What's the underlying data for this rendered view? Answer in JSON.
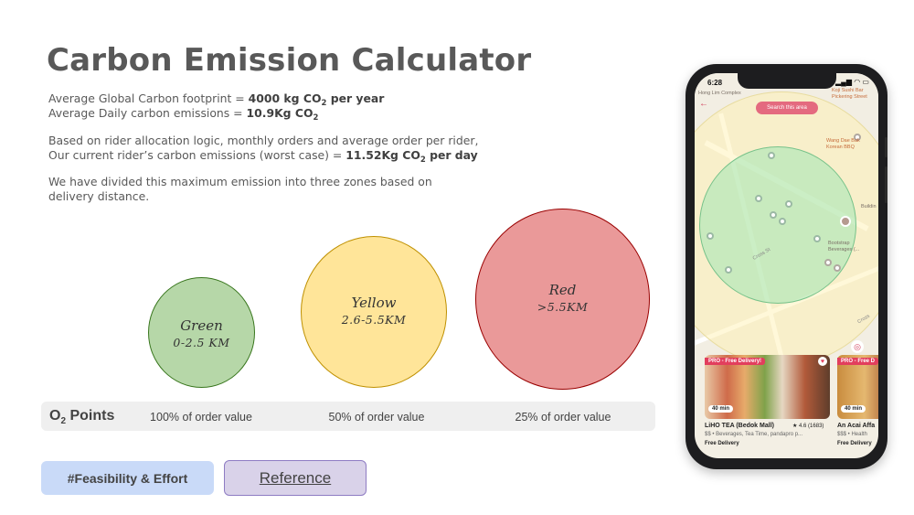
{
  "title": "Carbon Emission Calculator",
  "intro": {
    "line1_prefix": "Average Global Carbon footprint = ",
    "line1_value": "4000 kg CO",
    "line1_sub": "2",
    "line1_suffix": " per year",
    "line2_prefix": "Average Daily carbon emissions = ",
    "line2_value": "10.9Kg CO",
    "line2_sub": "2"
  },
  "rider": {
    "text": "Based on rider allocation logic, monthly orders and average order per rider, Our current rider’s carbon emissions (worst case) = ",
    "value": "11.52Kg CO",
    "sub": "2",
    "suffix": " per day"
  },
  "zones_note": "We have divided this maximum emission into three zones based on delivery distance.",
  "zones": [
    {
      "name": "Green",
      "range": "0-2.5 KM",
      "color": "#b6d7a8"
    },
    {
      "name": "Yellow",
      "range": "2.6-5.5KM",
      "color": "#ffe599"
    },
    {
      "name": "Red",
      "range": ">5.5KM",
      "color": "#ea9999"
    }
  ],
  "points": {
    "label_prefix": "O",
    "label_sub": "2",
    "label_suffix": " Points",
    "values": [
      "100% of order value",
      "50% of order value",
      "25% of order value"
    ]
  },
  "buttons": {
    "feasibility": "#Feasibility & Effort",
    "reference": "Reference"
  },
  "phone": {
    "time": "6:28",
    "status_icons": "▂▄▆ ◠ ▭",
    "search_area": "Search this area",
    "map_labels": {
      "hong_lim": "Hong Lim Complex",
      "koji": "Koji Sushi Bar Pickering Street",
      "wang_dae": "Wang Dae Bak Korean BBQ",
      "bootstrap": "Bootstrap Beverages (...",
      "cross_st": "Cross St",
      "cross_right": "Cross",
      "building": "Buildin"
    },
    "cards": [
      {
        "badge": "PRO - Free Delivery!",
        "eta": "40 min",
        "name": "LiHO TEA (Bedok Mall)",
        "rating": "★ 4.6 (1683)",
        "meta": "$$ • Beverages, Tea Time, pandapro p...",
        "free": "Free Delivery"
      },
      {
        "badge": "PRO - Free D",
        "eta": "40 min",
        "name": "An Acai Affa",
        "meta": "$$$ • Health",
        "free": "Free Delivery"
      }
    ]
  }
}
